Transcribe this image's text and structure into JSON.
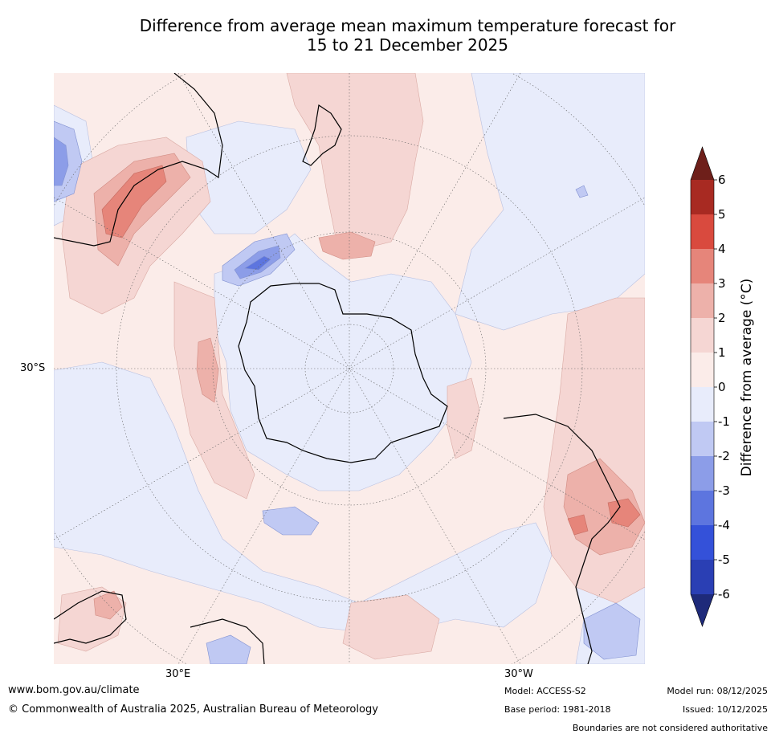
{
  "title": {
    "line1": "Difference from average mean maximum temperature forecast for",
    "line2": "15 to 21 December 2025"
  },
  "map": {
    "projection": "south-polar-stereographic",
    "graticule": {
      "lat_label": "30°S",
      "lon_labels": [
        "30°E",
        "30°W"
      ]
    }
  },
  "colorbar": {
    "label": "Difference from average (°C)",
    "ticks": [
      "6",
      "5",
      "4",
      "3",
      "2",
      "1",
      "0",
      "-1",
      "-2",
      "-3",
      "-4",
      "-5",
      "-6"
    ],
    "colors": {
      "above_max": "#6e1f1a",
      "5_to_6": "#a82a22",
      "4_to_5": "#d94a3e",
      "3_to_4": "#e6857a",
      "2_to_3": "#edb1aa",
      "1_to_2": "#f5d6d3",
      "0_to_1": "#fbece9",
      "m1_to_0": "#e8ecfb",
      "m2_to_m1": "#c0c9f3",
      "m3_to_m2": "#8c9de8",
      "m4_to_m3": "#5d75df",
      "m5_to_m4": "#3451d9",
      "m6_to_m5": "#2a3fb4",
      "below_min": "#1e2a7a"
    }
  },
  "footer": {
    "website": "www.bom.gov.au/climate",
    "copyright": "© Commonwealth of Australia 2025, Australian Bureau of Meteorology",
    "model": "Model: ACCESS-S2",
    "base_period": "Base period: 1981-2018",
    "model_run": "Model run: 08/12/2025",
    "issued": "Issued: 10/12/2025",
    "disclaimer": "Boundaries are not considered authoritative"
  }
}
